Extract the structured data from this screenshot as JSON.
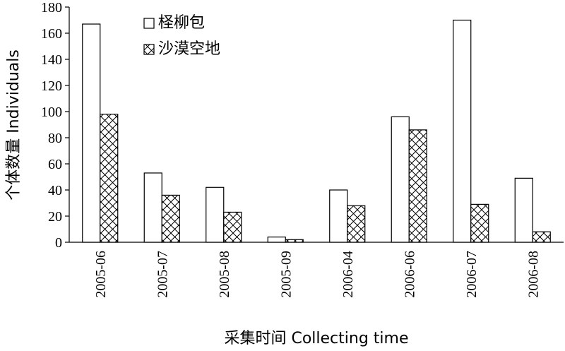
{
  "chart_data": {
    "type": "bar",
    "categories": [
      "2005-06",
      "2005-07",
      "2005-08",
      "2005-09",
      "2006-04",
      "2006-06",
      "2006-07",
      "2006-08"
    ],
    "series": [
      {
        "name": "柽柳包",
        "values": [
          167,
          53,
          42,
          4,
          40,
          96,
          170,
          49
        ],
        "pattern": "none"
      },
      {
        "name": "沙漠空地",
        "values": [
          98,
          36,
          23,
          2,
          28,
          86,
          29,
          8
        ],
        "pattern": "crosshatch"
      }
    ],
    "ylabel": "个体数量 Individuals",
    "xlabel": "采集时间 Collecting time",
    "ylim": [
      0,
      180
    ],
    "yticks": [
      0,
      20,
      40,
      60,
      80,
      100,
      120,
      140,
      160,
      180
    ],
    "grid": false,
    "legend": "top-left inside",
    "colors": {
      "bar_fill": "#ffffff",
      "stroke": "#000000"
    }
  }
}
